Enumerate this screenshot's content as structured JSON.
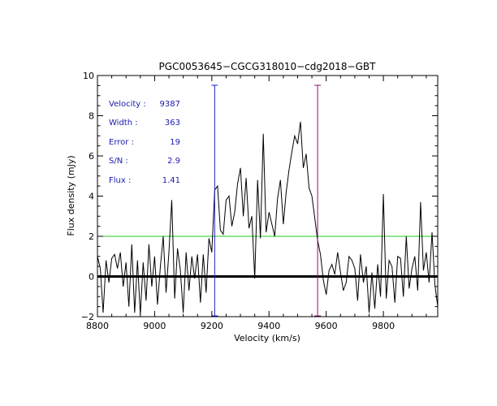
{
  "chart_data": {
    "type": "line",
    "title": "PGC0053645−CGCG318010−cdg2018−GBT",
    "xlabel": "Velocity (km/s)",
    "ylabel": "Flux density (mJy)",
    "xlim": [
      8800,
      9990
    ],
    "ylim": [
      -2,
      10
    ],
    "x_ticks": [
      8800,
      9000,
      9200,
      9400,
      9600,
      9800
    ],
    "y_ticks": [
      -2,
      0,
      2,
      4,
      6,
      8,
      10
    ],
    "x_tick_labels": [
      "8800",
      "9000",
      "9200",
      "9400",
      "9600",
      "9800"
    ],
    "y_tick_labels": [
      "−2",
      "0",
      "2",
      "4",
      "6",
      "8",
      "10"
    ],
    "baseline_level": 0,
    "threshold_level": 2,
    "threshold_color": "#22cc22",
    "markers": [
      {
        "name": "left-edge",
        "velocity": 9210,
        "color": "#2020cc"
      },
      {
        "name": "right-edge",
        "velocity": 9570,
        "color": "#881166"
      }
    ],
    "annotations": [
      {
        "key": "Velocity :",
        "value": "9387"
      },
      {
        "key": "Width  :",
        "value": "363"
      },
      {
        "key": "Error  :",
        "value": "19"
      },
      {
        "key": "S/N   :",
        "value": "2.9"
      },
      {
        "key": "Flux  :",
        "value": "1.41"
      }
    ],
    "series": [
      {
        "name": "spectrum",
        "x": [
          8800,
          8810,
          8820,
          8830,
          8840,
          8850,
          8860,
          8870,
          8880,
          8890,
          8900,
          8910,
          8920,
          8930,
          8940,
          8950,
          8960,
          8970,
          8980,
          8990,
          9000,
          9010,
          9020,
          9030,
          9040,
          9050,
          9060,
          9070,
          9080,
          9090,
          9100,
          9110,
          9120,
          9130,
          9140,
          9150,
          9160,
          9170,
          9180,
          9190,
          9200,
          9210,
          9220,
          9230,
          9240,
          9250,
          9260,
          9270,
          9280,
          9290,
          9300,
          9310,
          9320,
          9330,
          9340,
          9350,
          9360,
          9370,
          9380,
          9390,
          9400,
          9410,
          9420,
          9430,
          9440,
          9450,
          9460,
          9470,
          9480,
          9490,
          9500,
          9510,
          9520,
          9530,
          9540,
          9550,
          9560,
          9570,
          9580,
          9590,
          9600,
          9610,
          9620,
          9630,
          9640,
          9650,
          9660,
          9670,
          9680,
          9690,
          9700,
          9710,
          9720,
          9730,
          9740,
          9750,
          9760,
          9770,
          9780,
          9790,
          9800,
          9810,
          9820,
          9830,
          9840,
          9850,
          9860,
          9870,
          9880,
          9890,
          9900,
          9910,
          9920,
          9930,
          9940,
          9950,
          9960,
          9970,
          9980,
          9990
        ],
        "values": [
          1.0,
          0.4,
          -1.8,
          0.8,
          -0.3,
          0.9,
          1.1,
          0.4,
          1.2,
          -0.5,
          0.7,
          -1.5,
          1.6,
          -1.8,
          0.8,
          -1.9,
          0.7,
          -1.2,
          1.6,
          -0.5,
          1.0,
          -1.4,
          0.5,
          2.0,
          -0.8,
          1.2,
          3.8,
          -1.1,
          1.4,
          0.3,
          -1.8,
          1.2,
          -0.7,
          1.0,
          -0.1,
          1.1,
          -1.3,
          1.1,
          -0.8,
          1.9,
          1.2,
          4.3,
          4.5,
          2.3,
          2.1,
          3.8,
          4.0,
          2.5,
          3.2,
          4.6,
          5.4,
          3.0,
          4.9,
          2.4,
          3.0,
          -0.1,
          4.8,
          1.9,
          7.1,
          2.2,
          3.2,
          2.6,
          2.0,
          3.9,
          4.8,
          2.6,
          4.2,
          5.3,
          6.2,
          7.0,
          6.6,
          7.7,
          5.4,
          6.1,
          4.4,
          4.0,
          2.9,
          1.8,
          1.1,
          -0.2,
          -0.9,
          0.3,
          0.6,
          0.1,
          1.2,
          0.2,
          -0.7,
          -0.3,
          1.0,
          0.8,
          0.4,
          -1.2,
          1.1,
          -0.3,
          0.5,
          -1.8,
          0.2,
          -1.6,
          0.6,
          -1.0,
          4.1,
          -1.1,
          0.8,
          0.5,
          -1.3,
          1.0,
          0.9,
          -1.0,
          2.0,
          -0.6,
          0.4,
          1.0,
          -0.7,
          3.7,
          0.3,
          1.2,
          -0.3,
          2.2,
          -0.4,
          -1.5
        ]
      }
    ]
  }
}
